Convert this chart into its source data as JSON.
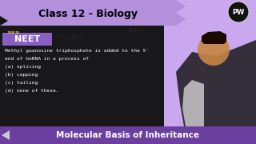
{
  "title": "Class 12 - Biology",
  "subtitle": "NEET",
  "question_lines": [
    "Methyl guanosine triphosphate is added to the 5′",
    "end of hnRNA in a process of",
    "(a) splicing",
    "(b) capping",
    "(c) tailing",
    "(d) none of these."
  ],
  "bottom_bar_text": "Molecular Basis of Inheritance",
  "bg_color": "#1a1a1a",
  "blackboard_color": "#1e1e1e",
  "purple_header_color": "#b48fdc",
  "purple_neet_color": "#8a5fc4",
  "white": "#ffffff",
  "black": "#000000",
  "bottom_bar_color": "#6a3fa0",
  "dark_bg": "#111111"
}
